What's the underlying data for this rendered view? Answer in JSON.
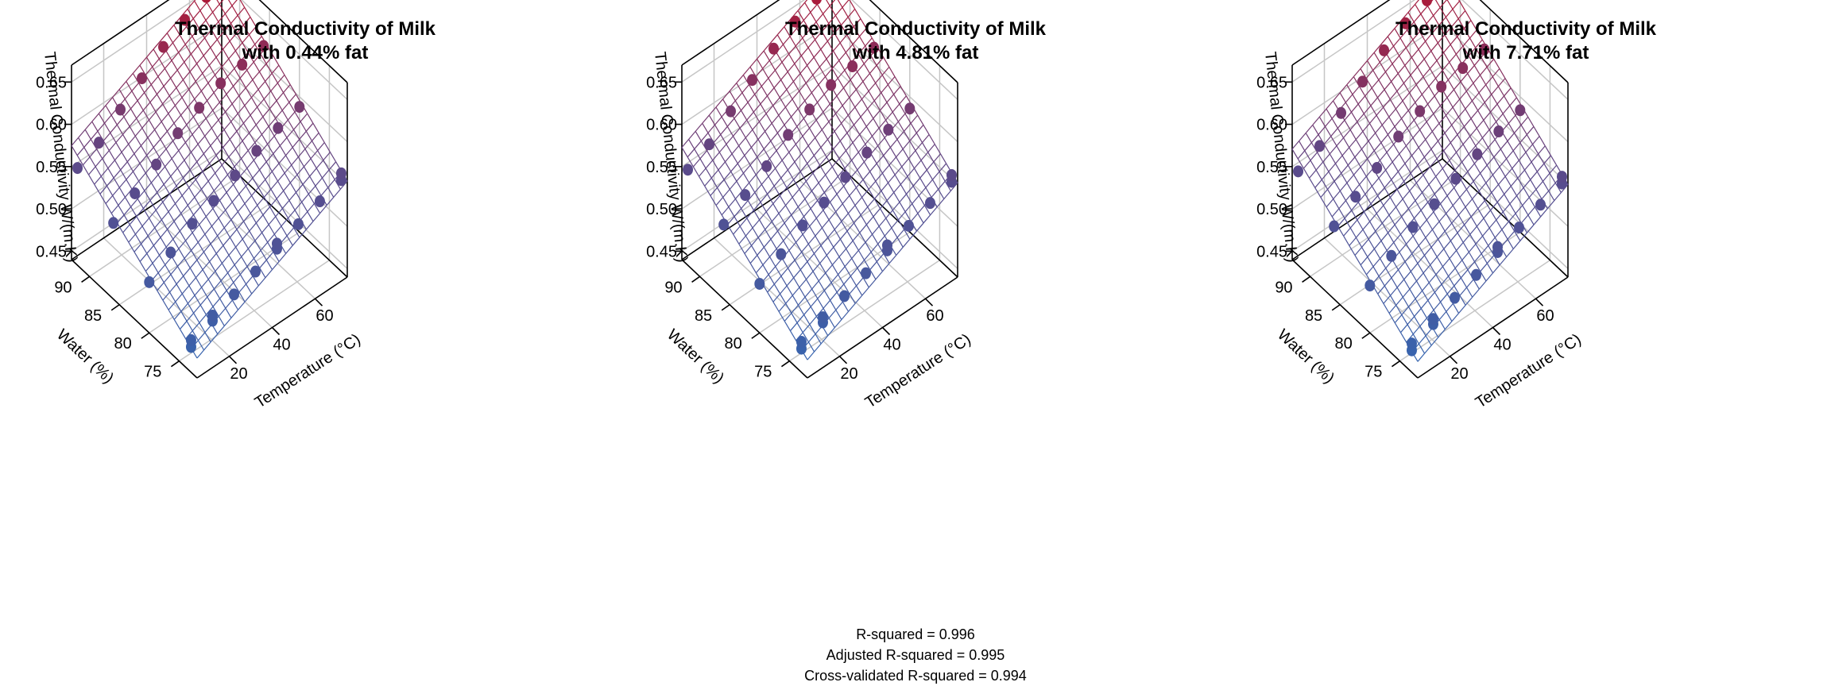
{
  "chart_data": [
    {
      "type": "surface3d",
      "title_line1": "Thermal Conductivity of Milk",
      "title_line2": "with 0.44% fat",
      "fat_percent": 0.44,
      "xlabel": "Temperature (°C)",
      "ylabel": "Water (%)",
      "zlabel": "Thermal Conductivity W/(m.K)",
      "xlim": [
        5,
        75
      ],
      "ylim": [
        72,
        93
      ],
      "zlim": [
        0.44,
        0.67
      ],
      "xticks": [
        20,
        40,
        60
      ],
      "yticks": [
        75,
        80,
        85,
        90
      ],
      "zticks": [
        0.45,
        0.5,
        0.55,
        0.6,
        0.65
      ],
      "color_low": "#2E6AB7",
      "color_mid": "#5B4A8A",
      "color_high": "#B8142E",
      "observations": [
        {
          "water": 73.0,
          "temp": 5,
          "k": 0.47
        },
        {
          "water": 73.0,
          "temp": 5,
          "k": 0.478
        },
        {
          "water": 73.0,
          "temp": 15,
          "k": 0.484
        },
        {
          "water": 73.0,
          "temp": 15,
          "k": 0.49
        },
        {
          "water": 73.0,
          "temp": 25,
          "k": 0.498
        },
        {
          "water": 73.0,
          "temp": 35,
          "k": 0.508
        },
        {
          "water": 73.0,
          "temp": 45,
          "k": 0.518
        },
        {
          "water": 73.0,
          "temp": 45,
          "k": 0.524
        },
        {
          "water": 73.0,
          "temp": 55,
          "k": 0.53
        },
        {
          "water": 73.0,
          "temp": 65,
          "k": 0.54
        },
        {
          "water": 73.0,
          "temp": 75,
          "k": 0.548
        },
        {
          "water": 73.0,
          "temp": 75,
          "k": 0.556
        },
        {
          "water": 80.0,
          "temp": 5,
          "k": 0.5
        },
        {
          "water": 80.0,
          "temp": 15,
          "k": 0.518
        },
        {
          "water": 80.0,
          "temp": 25,
          "k": 0.535
        },
        {
          "water": 80.0,
          "temp": 35,
          "k": 0.545
        },
        {
          "water": 80.0,
          "temp": 45,
          "k": 0.558
        },
        {
          "water": 80.0,
          "temp": 55,
          "k": 0.57
        },
        {
          "water": 80.0,
          "temp": 65,
          "k": 0.58
        },
        {
          "water": 80.0,
          "temp": 75,
          "k": 0.588
        },
        {
          "water": 86.0,
          "temp": 5,
          "k": 0.53
        },
        {
          "water": 86.0,
          "temp": 15,
          "k": 0.548
        },
        {
          "water": 86.0,
          "temp": 25,
          "k": 0.565
        },
        {
          "water": 86.0,
          "temp": 35,
          "k": 0.585
        },
        {
          "water": 86.0,
          "temp": 45,
          "k": 0.598
        },
        {
          "water": 86.0,
          "temp": 55,
          "k": 0.61
        },
        {
          "water": 86.0,
          "temp": 65,
          "k": 0.615
        },
        {
          "water": 86.0,
          "temp": 75,
          "k": 0.62
        },
        {
          "water": 92.0,
          "temp": 5,
          "k": 0.555
        },
        {
          "water": 92.0,
          "temp": 15,
          "k": 0.568
        },
        {
          "water": 92.0,
          "temp": 25,
          "k": 0.59
        },
        {
          "water": 92.0,
          "temp": 35,
          "k": 0.61
        },
        {
          "water": 92.0,
          "temp": 45,
          "k": 0.63
        },
        {
          "water": 92.0,
          "temp": 55,
          "k": 0.645
        },
        {
          "water": 92.0,
          "temp": 65,
          "k": 0.655
        },
        {
          "water": 92.0,
          "temp": 75,
          "k": 0.66
        }
      ]
    },
    {
      "type": "surface3d",
      "title_line1": "Thermal Conductivity of Milk",
      "title_line2": "with 4.81% fat",
      "fat_percent": 4.81,
      "xlabel": "Temperature (°C)",
      "ylabel": "Water (%)",
      "zlabel": "Thermal Conductivity W/(m.K)",
      "xlim": [
        5,
        75
      ],
      "ylim": [
        72,
        93
      ],
      "zlim": [
        0.44,
        0.67
      ],
      "xticks": [
        20,
        40,
        60
      ],
      "yticks": [
        75,
        80,
        85,
        90
      ],
      "zticks": [
        0.45,
        0.5,
        0.55,
        0.6,
        0.65
      ],
      "color_low": "#2E6AB7",
      "color_mid": "#5B4A8A",
      "color_high": "#B8142E",
      "observations": [
        {
          "water": 73.0,
          "temp": 5,
          "k": 0.468
        },
        {
          "water": 73.0,
          "temp": 5,
          "k": 0.476
        },
        {
          "water": 73.0,
          "temp": 15,
          "k": 0.482
        },
        {
          "water": 73.0,
          "temp": 15,
          "k": 0.488
        },
        {
          "water": 73.0,
          "temp": 25,
          "k": 0.496
        },
        {
          "water": 73.0,
          "temp": 35,
          "k": 0.506
        },
        {
          "water": 73.0,
          "temp": 45,
          "k": 0.516
        },
        {
          "water": 73.0,
          "temp": 45,
          "k": 0.522
        },
        {
          "water": 73.0,
          "temp": 55,
          "k": 0.528
        },
        {
          "water": 73.0,
          "temp": 65,
          "k": 0.538
        },
        {
          "water": 73.0,
          "temp": 75,
          "k": 0.546
        },
        {
          "water": 73.0,
          "temp": 75,
          "k": 0.554
        },
        {
          "water": 80.0,
          "temp": 5,
          "k": 0.498
        },
        {
          "water": 80.0,
          "temp": 15,
          "k": 0.516
        },
        {
          "water": 80.0,
          "temp": 25,
          "k": 0.533
        },
        {
          "water": 80.0,
          "temp": 35,
          "k": 0.543
        },
        {
          "water": 80.0,
          "temp": 45,
          "k": 0.556
        },
        {
          "water": 80.0,
          "temp": 55,
          "k": 0.568
        },
        {
          "water": 80.0,
          "temp": 65,
          "k": 0.578
        },
        {
          "water": 80.0,
          "temp": 75,
          "k": 0.586
        },
        {
          "water": 86.0,
          "temp": 5,
          "k": 0.528
        },
        {
          "water": 86.0,
          "temp": 15,
          "k": 0.546
        },
        {
          "water": 86.0,
          "temp": 25,
          "k": 0.563
        },
        {
          "water": 86.0,
          "temp": 35,
          "k": 0.583
        },
        {
          "water": 86.0,
          "temp": 45,
          "k": 0.596
        },
        {
          "water": 86.0,
          "temp": 55,
          "k": 0.608
        },
        {
          "water": 86.0,
          "temp": 65,
          "k": 0.613
        },
        {
          "water": 86.0,
          "temp": 75,
          "k": 0.618
        },
        {
          "water": 92.0,
          "temp": 5,
          "k": 0.553
        },
        {
          "water": 92.0,
          "temp": 15,
          "k": 0.566
        },
        {
          "water": 92.0,
          "temp": 25,
          "k": 0.588
        },
        {
          "water": 92.0,
          "temp": 35,
          "k": 0.608
        },
        {
          "water": 92.0,
          "temp": 45,
          "k": 0.628
        },
        {
          "water": 92.0,
          "temp": 55,
          "k": 0.643
        },
        {
          "water": 92.0,
          "temp": 65,
          "k": 0.653
        },
        {
          "water": 92.0,
          "temp": 75,
          "k": 0.658
        }
      ]
    },
    {
      "type": "surface3d",
      "title_line1": "Thermal Conductivity of Milk",
      "title_line2": "with 7.71% fat",
      "fat_percent": 7.71,
      "xlabel": "Temperature (°C)",
      "ylabel": "Water (%)",
      "zlabel": "Thermal Conductivity W/(m.K)",
      "xlim": [
        5,
        75
      ],
      "ylim": [
        72,
        93
      ],
      "zlim": [
        0.44,
        0.67
      ],
      "xticks": [
        20,
        40,
        60
      ],
      "yticks": [
        75,
        80,
        85,
        90
      ],
      "zticks": [
        0.45,
        0.5,
        0.55,
        0.6,
        0.65
      ],
      "color_low": "#2E6AB7",
      "color_mid": "#5B4A8A",
      "color_high": "#B8142E",
      "observations": [
        {
          "water": 73.0,
          "temp": 5,
          "k": 0.466
        },
        {
          "water": 73.0,
          "temp": 5,
          "k": 0.474
        },
        {
          "water": 73.0,
          "temp": 15,
          "k": 0.48
        },
        {
          "water": 73.0,
          "temp": 15,
          "k": 0.486
        },
        {
          "water": 73.0,
          "temp": 25,
          "k": 0.494
        },
        {
          "water": 73.0,
          "temp": 35,
          "k": 0.504
        },
        {
          "water": 73.0,
          "temp": 45,
          "k": 0.514
        },
        {
          "water": 73.0,
          "temp": 45,
          "k": 0.52
        },
        {
          "water": 73.0,
          "temp": 55,
          "k": 0.526
        },
        {
          "water": 73.0,
          "temp": 65,
          "k": 0.536
        },
        {
          "water": 73.0,
          "temp": 75,
          "k": 0.544
        },
        {
          "water": 73.0,
          "temp": 75,
          "k": 0.552
        },
        {
          "water": 80.0,
          "temp": 5,
          "k": 0.496
        },
        {
          "water": 80.0,
          "temp": 15,
          "k": 0.514
        },
        {
          "water": 80.0,
          "temp": 25,
          "k": 0.531
        },
        {
          "water": 80.0,
          "temp": 35,
          "k": 0.541
        },
        {
          "water": 80.0,
          "temp": 45,
          "k": 0.554
        },
        {
          "water": 80.0,
          "temp": 55,
          "k": 0.566
        },
        {
          "water": 80.0,
          "temp": 65,
          "k": 0.576
        },
        {
          "water": 80.0,
          "temp": 75,
          "k": 0.584
        },
        {
          "water": 86.0,
          "temp": 5,
          "k": 0.526
        },
        {
          "water": 86.0,
          "temp": 15,
          "k": 0.544
        },
        {
          "water": 86.0,
          "temp": 25,
          "k": 0.561
        },
        {
          "water": 86.0,
          "temp": 35,
          "k": 0.581
        },
        {
          "water": 86.0,
          "temp": 45,
          "k": 0.594
        },
        {
          "water": 86.0,
          "temp": 55,
          "k": 0.606
        },
        {
          "water": 86.0,
          "temp": 65,
          "k": 0.611
        },
        {
          "water": 86.0,
          "temp": 75,
          "k": 0.616
        },
        {
          "water": 92.0,
          "temp": 5,
          "k": 0.551
        },
        {
          "water": 92.0,
          "temp": 15,
          "k": 0.564
        },
        {
          "water": 92.0,
          "temp": 25,
          "k": 0.586
        },
        {
          "water": 92.0,
          "temp": 35,
          "k": 0.606
        },
        {
          "water": 92.0,
          "temp": 45,
          "k": 0.626
        },
        {
          "water": 92.0,
          "temp": 55,
          "k": 0.641
        },
        {
          "water": 92.0,
          "temp": 65,
          "k": 0.651
        },
        {
          "water": 92.0,
          "temp": 75,
          "k": 0.656
        }
      ]
    }
  ],
  "stats": {
    "r_squared": "R-squared = 0.996",
    "adjusted_r_squared": "Adjusted R-squared = 0.995",
    "cv_r_squared": "Cross-validated R-squared = 0.994"
  }
}
